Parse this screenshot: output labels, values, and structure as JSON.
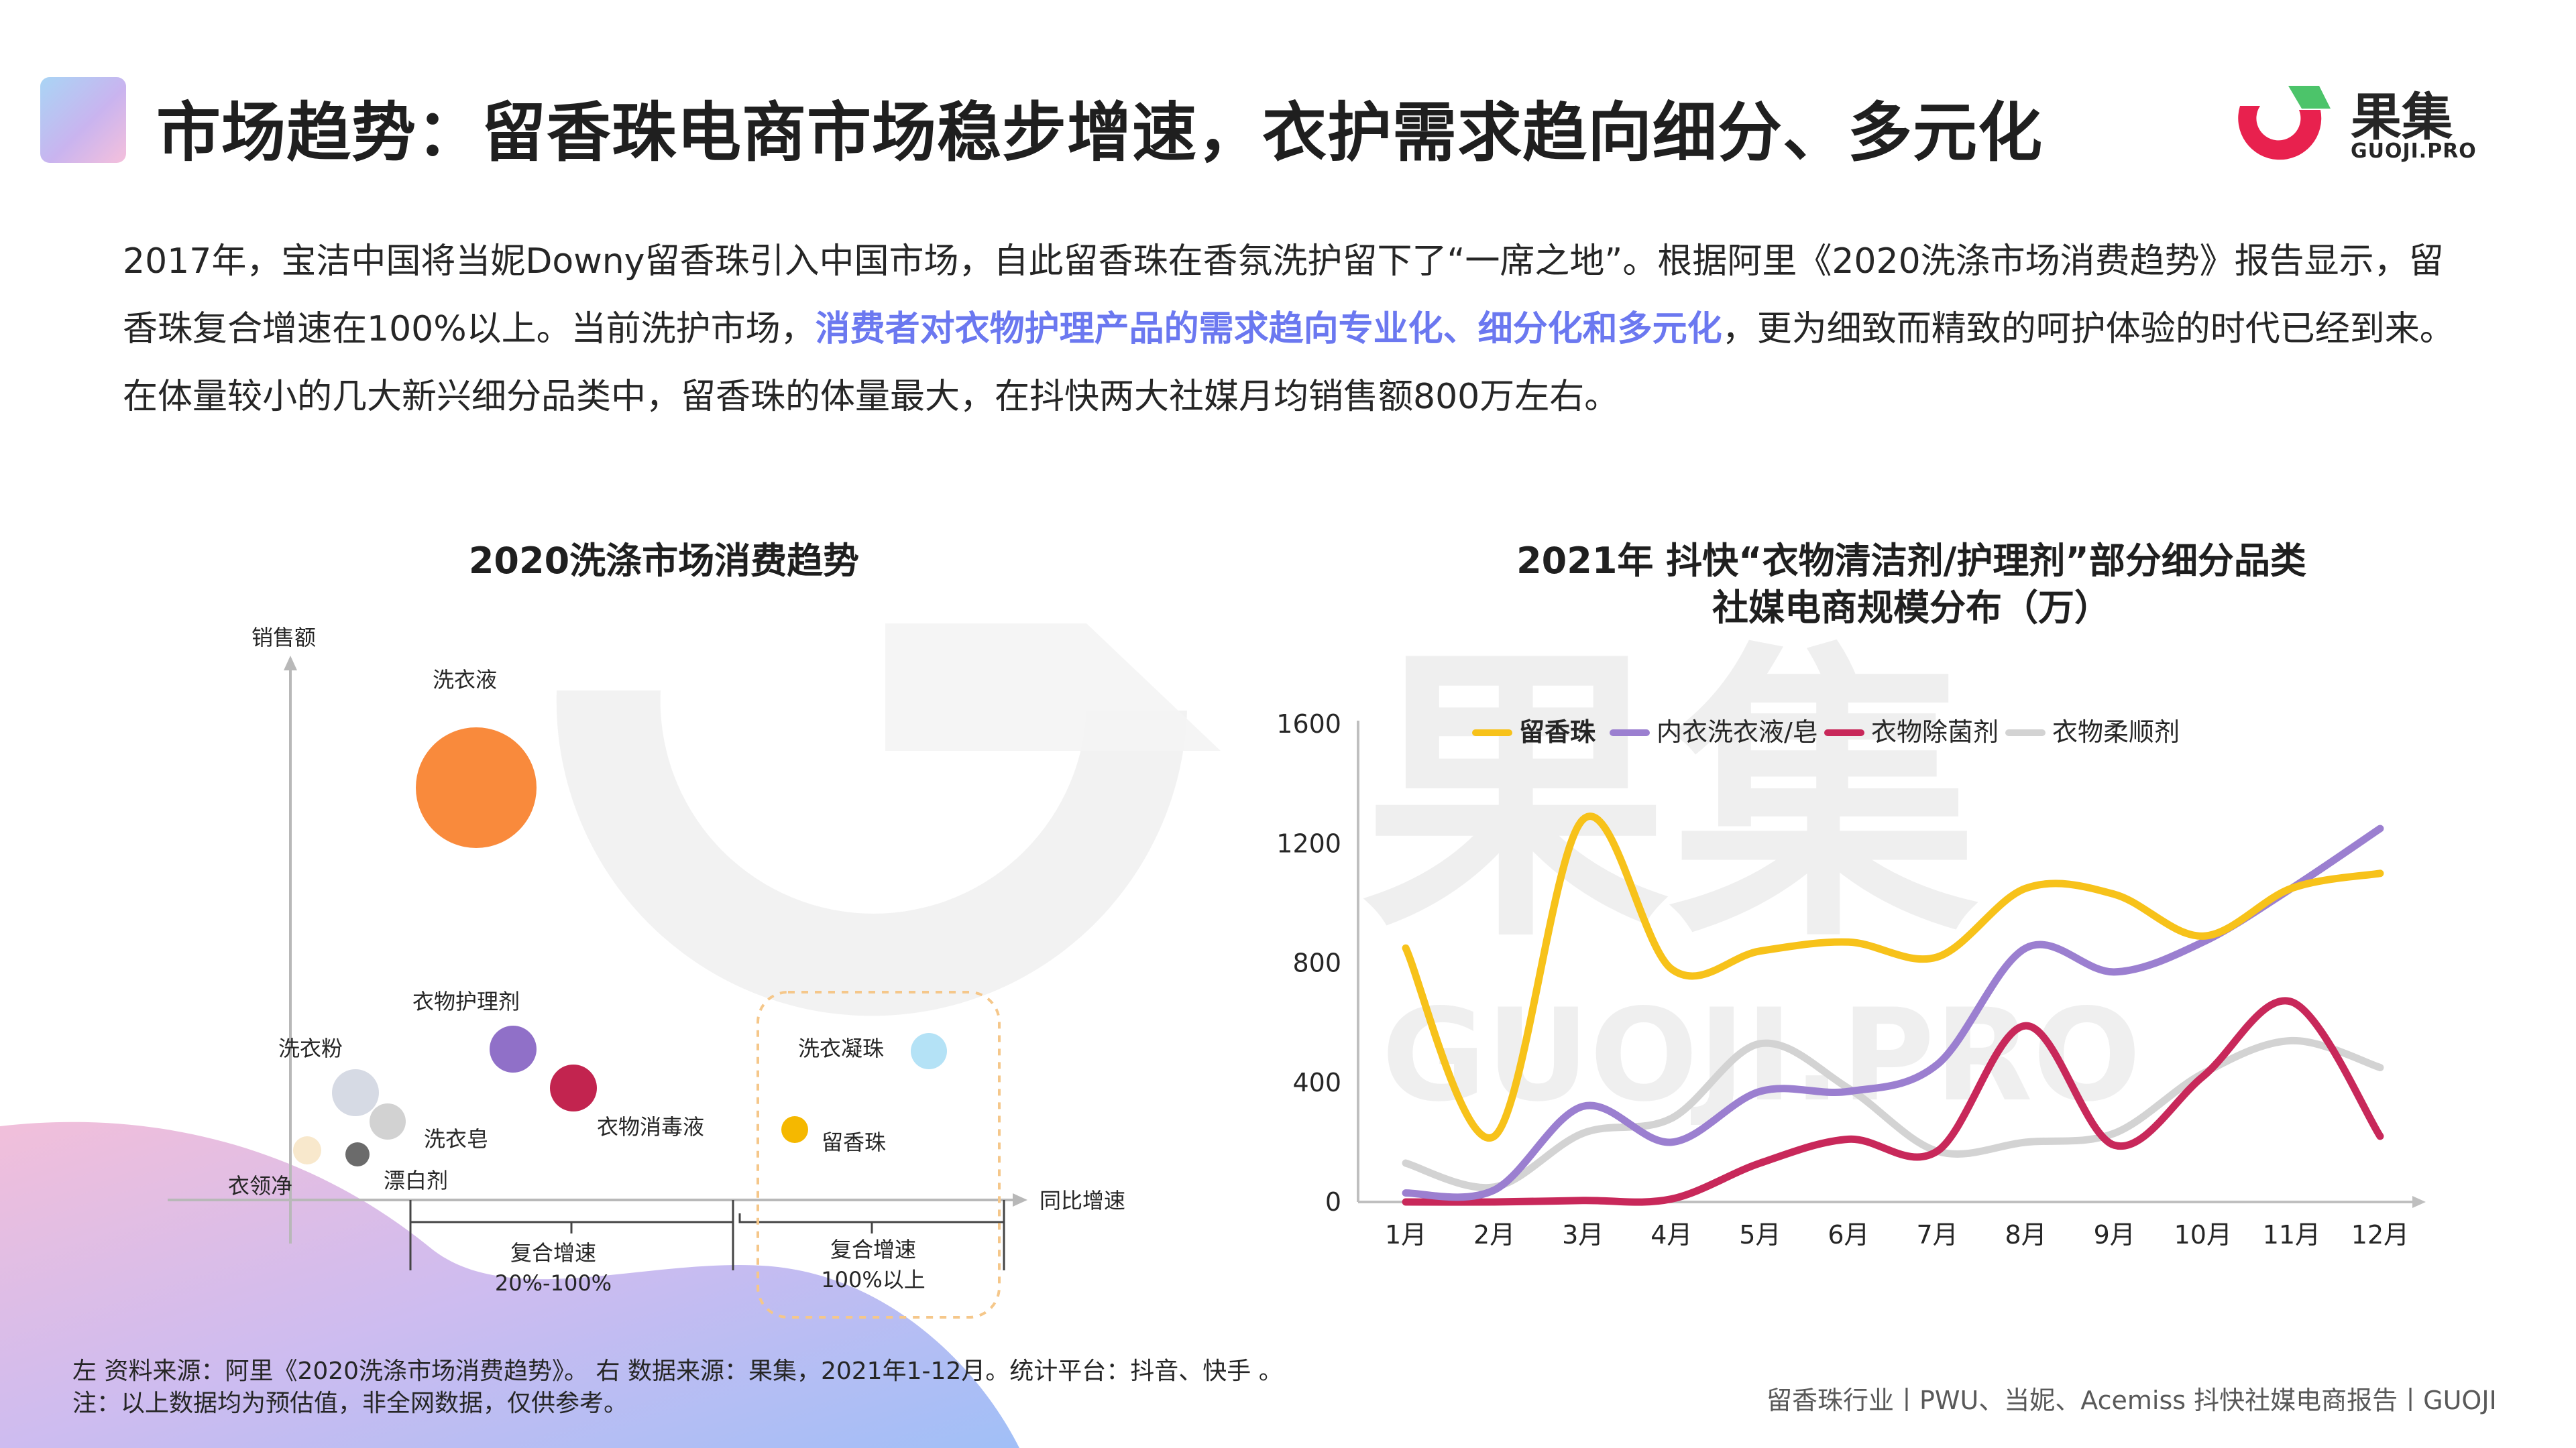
{
  "header": {
    "title": "市场趋势：留香珠电商市场稳步增速，衣护需求趋向细分、多元化",
    "logo_name": "果集",
    "logo_domain": "GUOJI.PRO"
  },
  "intro": {
    "part1": "2017年，宝洁中国将当妮Downy留香珠引入中国市场，自此留香珠在香氛洗护留下了“一席之地”。根据阿里《2020洗涤市场消费趋势》报告显示，留香珠复合增速在100%以上。当前洗护市场，",
    "highlight": "消费者对衣物护理产品的需求趋向专业化、细分化和多元化",
    "part2": "，更为细致而精致的呵护体验的时代已经到来。在体量较小的几大新兴细分品类中，留香珠的体量最大，在抖快两大社媒月均销售额800万左右。"
  },
  "watermark": {
    "brand": "果集",
    "domain": "GUOJI.PRO"
  },
  "chart_data": [
    {
      "type": "scatter",
      "title": "2020洗涤市场消费趋势",
      "ylabel": "销售额",
      "xlabel": "同比增速",
      "points": [
        {
          "label": "洗衣液",
          "color": "#f98a3c",
          "size": 3
        },
        {
          "label": "洗衣粉",
          "color": "#d6dae4",
          "size": 1
        },
        {
          "label": "洗衣皂",
          "color": "#d2d2d2",
          "size": 0.7
        },
        {
          "label": "衣领净",
          "color": "#f8e8cc",
          "size": 0.5
        },
        {
          "label": "漂白剂",
          "color": "#6b6b6b",
          "size": 0.4
        },
        {
          "label": "衣物护理剂",
          "color": "#9070c8",
          "size": 0.9
        },
        {
          "label": "衣物消毒液",
          "color": "#c2244f",
          "size": 0.9
        },
        {
          "label": "洗衣凝珠",
          "color": "#b4e2f6",
          "size": 0.7
        },
        {
          "label": "留香珠",
          "color": "#f5b800",
          "size": 0.5
        }
      ],
      "groups": [
        {
          "line1": "复合增速",
          "line2": "20%-100%"
        },
        {
          "line1": "复合增速",
          "line2": "100%以上"
        }
      ]
    },
    {
      "type": "line",
      "title_line1": "2021年 抖快“衣物清洁剂/护理剂”部分细分品类",
      "title_line2": "社媒电商规模分布（万）",
      "categories": [
        "1月",
        "2月",
        "3月",
        "4月",
        "5月",
        "6月",
        "7月",
        "8月",
        "9月",
        "10月",
        "11月",
        "12月"
      ],
      "ylim": [
        0,
        1600
      ],
      "yticks": [
        "0",
        "400",
        "800",
        "1200",
        "1600"
      ],
      "series": [
        {
          "name": "留香珠",
          "color": "#f7c21a",
          "values": [
            850,
            220,
            1280,
            780,
            840,
            870,
            820,
            1050,
            1030,
            890,
            1050,
            1100
          ]
        },
        {
          "name": "内衣洗衣液/皂",
          "color": "#9b7fd0",
          "values": [
            30,
            40,
            320,
            200,
            370,
            370,
            460,
            850,
            770,
            870,
            1050,
            1250
          ]
        },
        {
          "name": "衣物除菌剂",
          "color": "#c8285a",
          "values": [
            0,
            0,
            5,
            10,
            130,
            210,
            170,
            590,
            190,
            420,
            670,
            220
          ]
        },
        {
          "name": "衣物柔顺剂",
          "color": "#d3d3d3",
          "values": [
            130,
            50,
            230,
            280,
            530,
            380,
            170,
            200,
            230,
            430,
            540,
            450
          ]
        }
      ]
    }
  ],
  "footer": {
    "left_line1": "左  资料来源：阿里《2020洗涤市场消费趋势》。 右  数据来源：果集，2021年1-12月。统计平台：抖音、快手 。",
    "left_line2": "注：以上数据均为预估值，非全网数据，仅供参考。",
    "right": "留香珠行业丨PWU、当妮、Acemiss 抖快社媒电商报告丨GUOJI"
  }
}
